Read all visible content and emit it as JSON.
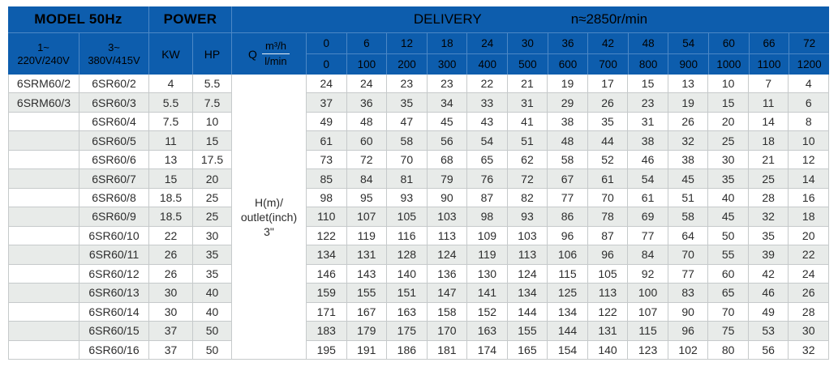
{
  "header": {
    "model_title": "MODEL 50Hz",
    "power_title": "POWER",
    "delivery_title": "DELIVERY",
    "speed_label": "n≈2850r/min",
    "phase1_line1": "1~",
    "phase1_line2": "220V/240V",
    "phase3_line1": "3~",
    "phase3_line2": "380V/415V",
    "kw_label": "KW",
    "hp_label": "HP",
    "q_symbol": "Q",
    "q_unit_top": "m³/h",
    "q_unit_bottom": "l/min",
    "flow_m3h": [
      "0",
      "6",
      "12",
      "18",
      "24",
      "30",
      "36",
      "42",
      "48",
      "54",
      "60",
      "66",
      "72"
    ],
    "flow_lmin": [
      "0",
      "100",
      "200",
      "300",
      "400",
      "500",
      "600",
      "700",
      "800",
      "900",
      "1000",
      "1100",
      "1200"
    ]
  },
  "center_cell": {
    "line1": "H(m)/",
    "line2": "outlet(inch)",
    "line3": "3\""
  },
  "rows": [
    {
      "model_1ph": "6SRM60/2",
      "model_3ph": "6SR60/2",
      "kw": "4",
      "hp": "5.5",
      "values": [
        "24",
        "24",
        "23",
        "23",
        "22",
        "21",
        "19",
        "17",
        "15",
        "13",
        "10",
        "7",
        "4"
      ]
    },
    {
      "model_1ph": "6SRM60/3",
      "model_3ph": "6SR60/3",
      "kw": "5.5",
      "hp": "7.5",
      "values": [
        "37",
        "36",
        "35",
        "34",
        "33",
        "31",
        "29",
        "26",
        "23",
        "19",
        "15",
        "11",
        "6"
      ]
    },
    {
      "model_1ph": "",
      "model_3ph": "6SR60/4",
      "kw": "7.5",
      "hp": "10",
      "values": [
        "49",
        "48",
        "47",
        "45",
        "43",
        "41",
        "38",
        "35",
        "31",
        "26",
        "20",
        "14",
        "8"
      ]
    },
    {
      "model_1ph": "",
      "model_3ph": "6SR60/5",
      "kw": "11",
      "hp": "15",
      "values": [
        "61",
        "60",
        "58",
        "56",
        "54",
        "51",
        "48",
        "44",
        "38",
        "32",
        "25",
        "18",
        "10"
      ]
    },
    {
      "model_1ph": "",
      "model_3ph": "6SR60/6",
      "kw": "13",
      "hp": "17.5",
      "values": [
        "73",
        "72",
        "70",
        "68",
        "65",
        "62",
        "58",
        "52",
        "46",
        "38",
        "30",
        "21",
        "12"
      ]
    },
    {
      "model_1ph": "",
      "model_3ph": "6SR60/7",
      "kw": "15",
      "hp": "20",
      "values": [
        "85",
        "84",
        "81",
        "79",
        "76",
        "72",
        "67",
        "61",
        "54",
        "45",
        "35",
        "25",
        "14"
      ]
    },
    {
      "model_1ph": "",
      "model_3ph": "6SR60/8",
      "kw": "18.5",
      "hp": "25",
      "values": [
        "98",
        "95",
        "93",
        "90",
        "87",
        "82",
        "77",
        "70",
        "61",
        "51",
        "40",
        "28",
        "16"
      ]
    },
    {
      "model_1ph": "",
      "model_3ph": "6SR60/9",
      "kw": "18.5",
      "hp": "25",
      "values": [
        "110",
        "107",
        "105",
        "103",
        "98",
        "93",
        "86",
        "78",
        "69",
        "58",
        "45",
        "32",
        "18"
      ]
    },
    {
      "model_1ph": "",
      "model_3ph": "6SR60/10",
      "kw": "22",
      "hp": "30",
      "values": [
        "122",
        "119",
        "116",
        "113",
        "109",
        "103",
        "96",
        "87",
        "77",
        "64",
        "50",
        "35",
        "20"
      ]
    },
    {
      "model_1ph": "",
      "model_3ph": "6SR60/11",
      "kw": "26",
      "hp": "35",
      "values": [
        "134",
        "131",
        "128",
        "124",
        "119",
        "113",
        "106",
        "96",
        "84",
        "70",
        "55",
        "39",
        "22"
      ]
    },
    {
      "model_1ph": "",
      "model_3ph": "6SR60/12",
      "kw": "26",
      "hp": "35",
      "values": [
        "146",
        "143",
        "140",
        "136",
        "130",
        "124",
        "115",
        "105",
        "92",
        "77",
        "60",
        "42",
        "24"
      ]
    },
    {
      "model_1ph": "",
      "model_3ph": "6SR60/13",
      "kw": "30",
      "hp": "40",
      "values": [
        "159",
        "155",
        "151",
        "147",
        "141",
        "134",
        "125",
        "113",
        "100",
        "83",
        "65",
        "46",
        "26"
      ]
    },
    {
      "model_1ph": "",
      "model_3ph": "6SR60/14",
      "kw": "30",
      "hp": "40",
      "values": [
        "171",
        "167",
        "163",
        "158",
        "152",
        "144",
        "134",
        "122",
        "107",
        "90",
        "70",
        "49",
        "28"
      ]
    },
    {
      "model_1ph": "",
      "model_3ph": "6SR60/15",
      "kw": "37",
      "hp": "50",
      "values": [
        "183",
        "179",
        "175",
        "170",
        "163",
        "155",
        "144",
        "131",
        "115",
        "96",
        "75",
        "53",
        "30"
      ]
    },
    {
      "model_1ph": "",
      "model_3ph": "6SR60/16",
      "kw": "37",
      "hp": "50",
      "values": [
        "195",
        "191",
        "186",
        "181",
        "174",
        "165",
        "154",
        "140",
        "123",
        "102",
        "80",
        "56",
        "32"
      ]
    }
  ],
  "colors": {
    "header_blue": "#0d5dad",
    "header_divider": "#4c88c6",
    "row_stripe": "#e8ebe9",
    "grid_line": "#c6cacb",
    "body_text": "#2d2d2d"
  }
}
